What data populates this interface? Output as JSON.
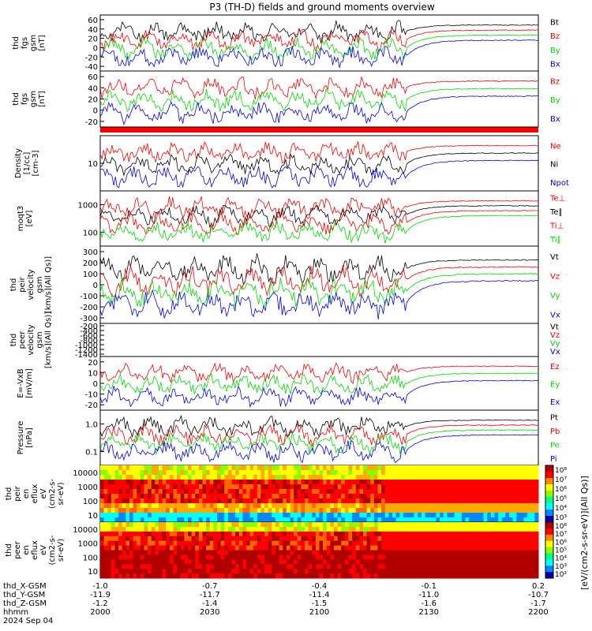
{
  "title": "P3 (TH-D) fields and ground moments overview",
  "colors": {
    "black": "#000000",
    "red": "#ff0000",
    "green": "#00dd00",
    "blue": "#0000ff",
    "band": "#ff0000"
  },
  "chart_data": [
    {
      "type": "line",
      "ylabel": [
        "thd",
        "fgs",
        "gsm",
        "[nT]"
      ],
      "yticks": [
        "60",
        "40",
        "20",
        "0",
        "-20",
        "-40"
      ],
      "ylim": [
        -45,
        70
      ],
      "series": [
        {
          "name": "Bt",
          "color": "black"
        },
        {
          "name": "Bz",
          "color": "red"
        },
        {
          "name": "By",
          "color": "green"
        },
        {
          "name": "Bx",
          "color": "blue"
        }
      ]
    },
    {
      "type": "line",
      "ylabel": [
        "thd",
        "fgs",
        "gsm",
        "[nT]"
      ],
      "yticks": [
        "60",
        "40",
        "20",
        "0",
        "-20"
      ],
      "ylim": [
        -35,
        62
      ],
      "series": [
        {
          "name": "Bz",
          "color": "red"
        },
        {
          "name": "By",
          "color": "green"
        },
        {
          "name": "Bx",
          "color": "blue"
        }
      ]
    },
    {
      "type": "line",
      "ylabel": [
        "Density",
        "[1/cc]",
        "[cm-3]"
      ],
      "yticks": [
        "10"
      ],
      "ylim": [
        0.1,
        40
      ],
      "yscale": "log",
      "series": [
        {
          "name": "Ne",
          "color": "red"
        },
        {
          "name": "Ni",
          "color": "black"
        },
        {
          "name": "Npot",
          "color": "blue"
        }
      ]
    },
    {
      "type": "line",
      "ylabel": [
        "moqt3",
        "[eV]"
      ],
      "yticks": [
        "1000",
        "100"
      ],
      "ylim": [
        40,
        2500
      ],
      "yscale": "log",
      "series": [
        {
          "name": "Te⊥",
          "color": "red"
        },
        {
          "name": "Te∥",
          "color": "black"
        },
        {
          "name": "Ti⊥",
          "color": "red"
        },
        {
          "name": "Ti∥",
          "color": "green"
        }
      ]
    },
    {
      "type": "line",
      "ylabel": [
        "thd",
        "peir",
        "velocity",
        "gsm",
        "[km/s](All Qs)]"
      ],
      "yticks": [
        "300",
        "200",
        "100",
        "0",
        "-100",
        "-200",
        "-300"
      ],
      "ylim": [
        -320,
        320
      ],
      "series": [
        {
          "name": "Vt",
          "color": "black"
        },
        {
          "name": "Vz",
          "color": "red"
        },
        {
          "name": "Vy",
          "color": "green"
        },
        {
          "name": "Vx",
          "color": "blue"
        }
      ]
    },
    {
      "type": "line",
      "ylabel": [
        "thd",
        "peer",
        "velocity",
        "gsm",
        "[km/s](All Qs)]"
      ],
      "yticks": [
        "-200",
        "-400",
        "-600",
        "-800",
        "-1000",
        "-1200",
        "-1400"
      ],
      "ylim": [
        -1450,
        -150
      ],
      "series": [
        {
          "name": "Vt",
          "color": "black"
        },
        {
          "name": "Vz",
          "color": "red"
        },
        {
          "name": "Vy",
          "color": "green"
        },
        {
          "name": "Vx",
          "color": "blue"
        }
      ]
    },
    {
      "type": "line",
      "ylabel": [
        "E=-VxB",
        "[mV/m]"
      ],
      "yticks": [
        "20",
        "10",
        "0",
        "-10",
        "-20"
      ],
      "ylim": [
        -25,
        25
      ],
      "series": [
        {
          "name": "Ez",
          "color": "red"
        },
        {
          "name": "Ey",
          "color": "green"
        },
        {
          "name": "Ex",
          "color": "blue"
        }
      ]
    },
    {
      "type": "line",
      "ylabel": [
        "Pressure",
        "[nPa]"
      ],
      "yticks": [
        "1.0",
        "0.1"
      ],
      "ylim": [
        0.05,
        2.2
      ],
      "yscale": "log",
      "series": [
        {
          "name": "Pt",
          "color": "black"
        },
        {
          "name": "Pb",
          "color": "red"
        },
        {
          "name": "Pe",
          "color": "green"
        },
        {
          "name": "Pi",
          "color": "blue"
        }
      ]
    },
    {
      "type": "heatmap",
      "ylabel": [
        "thd",
        "peir",
        "en",
        "eflux",
        "eV",
        "(cm2-s-",
        "sr-eV)"
      ],
      "yticks": [
        "10000",
        "1000",
        "100",
        "10"
      ],
      "yscale": "log",
      "colorbar": {
        "ticks": [
          "10⁸",
          "10⁷",
          "10⁶",
          "10⁵",
          "10⁴",
          "10³"
        ]
      }
    },
    {
      "type": "heatmap",
      "ylabel": [
        "thd",
        "peer",
        "en",
        "eflux",
        "eV",
        "(cm2-s-",
        "sr-eV)"
      ],
      "yticks": [
        "10000",
        "1000",
        "100",
        "10"
      ],
      "yscale": "log",
      "colorbar": {
        "ticks": [
          "10⁸",
          "10⁷",
          "10⁶",
          "10⁵",
          "10⁴",
          "10³",
          "10²"
        ]
      }
    }
  ],
  "colorbar_label": "[eV/(cm2-s-sr-eV)](All Qs)]",
  "xaxis": {
    "rows": [
      {
        "label": "thd_X-GSM",
        "values": [
          "-1.0",
          "-0.7",
          "-0.4",
          "-0.1",
          "0.2"
        ]
      },
      {
        "label": "thd_Y-GSM",
        "values": [
          "-11.9",
          "-11.7",
          "-11.4",
          "-11.0",
          "-10.7"
        ]
      },
      {
        "label": "thd_Z-GSM",
        "values": [
          "-1.2",
          "-1.4",
          "-1.5",
          "-1.6",
          "-1.7"
        ]
      },
      {
        "label": "hhmm",
        "values": [
          "2000",
          "2030",
          "2100",
          "2130",
          "2200"
        ]
      }
    ],
    "date": "2024 Sep 04"
  }
}
